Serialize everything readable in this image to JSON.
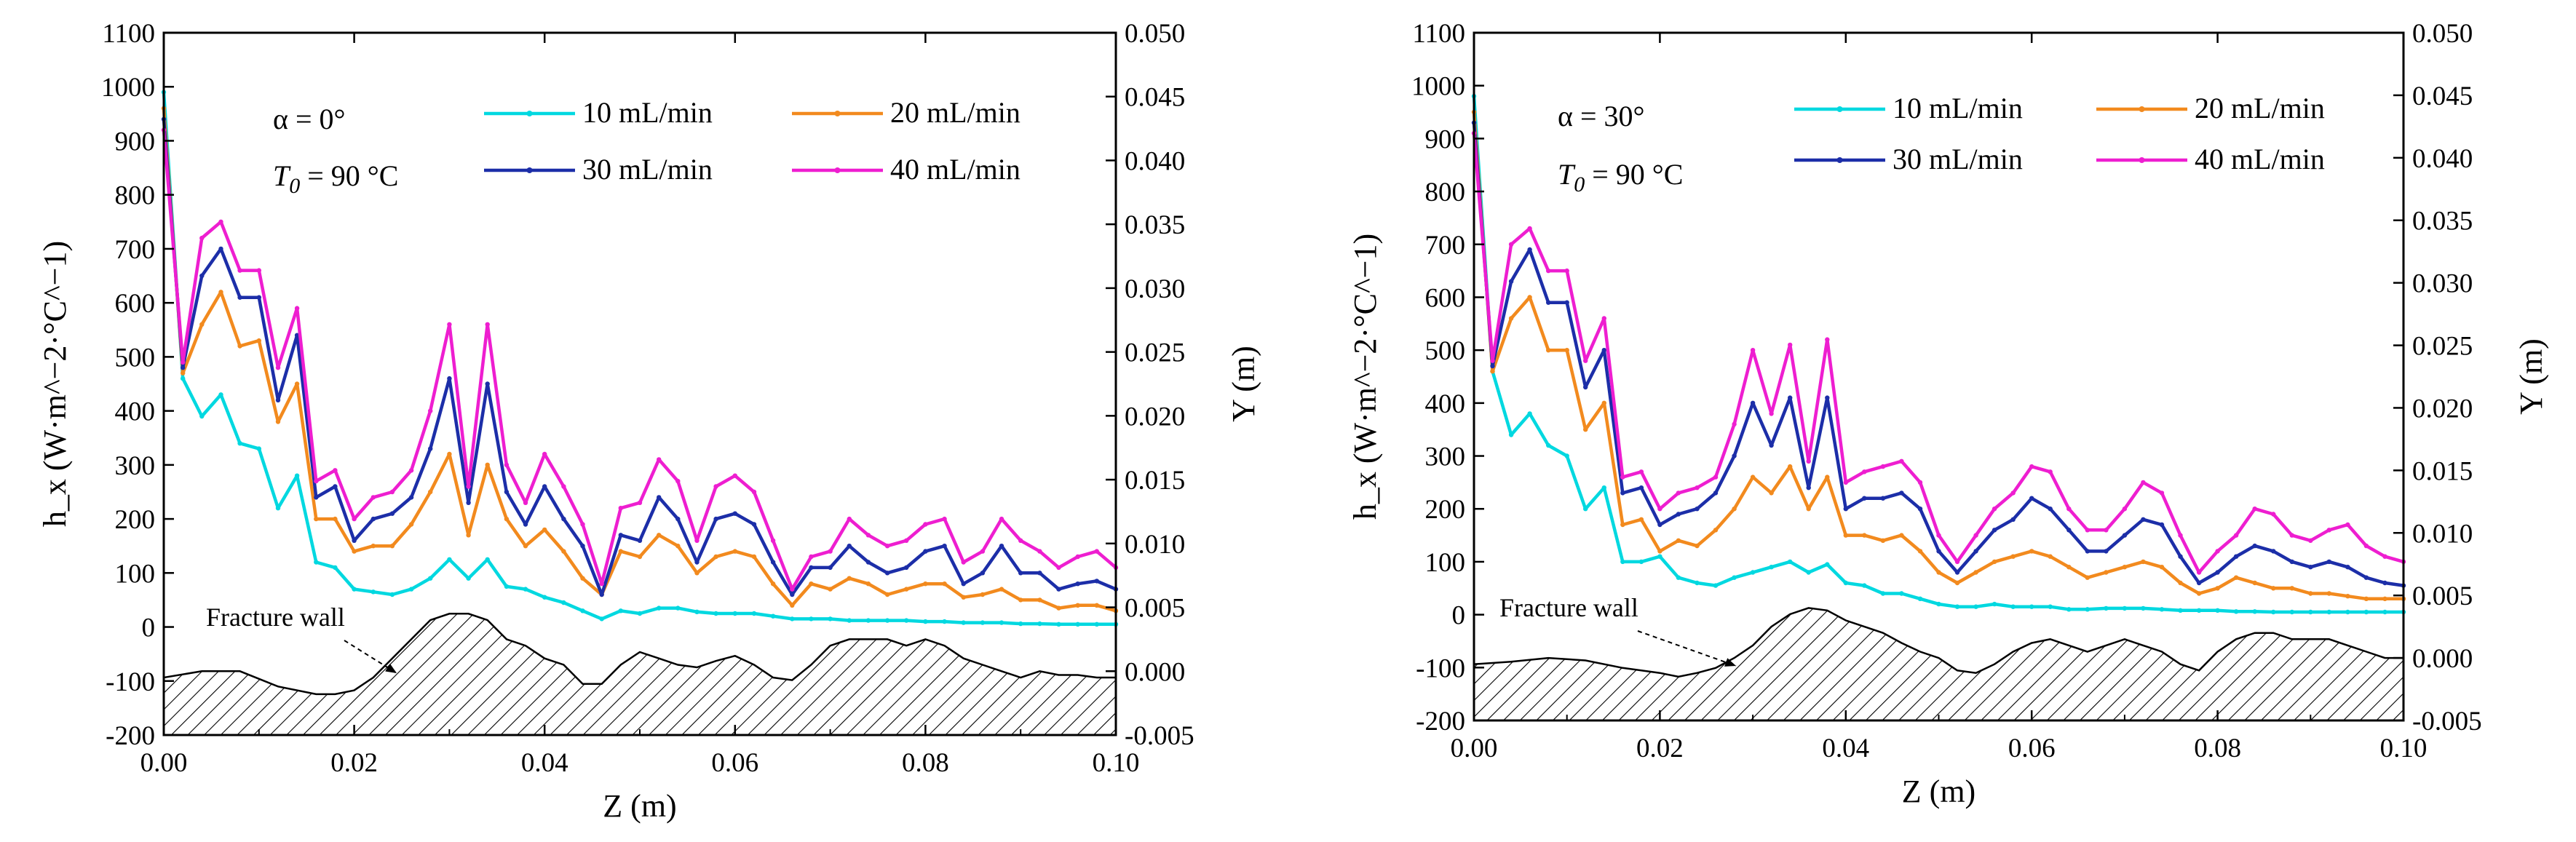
{
  "figure": {
    "panels": [
      {
        "condition": {
          "alpha": "α = 0°",
          "t0_symbol": "T",
          "t0_sub": "0",
          "t0_value": " = 90 °C"
        },
        "fracture_label": "Fracture wall"
      },
      {
        "condition": {
          "alpha": "α = 30°",
          "t0_symbol": "T",
          "t0_sub": "0",
          "t0_value": " = 90 °C"
        },
        "fracture_label": "Fracture wall"
      }
    ]
  },
  "chart_data": [
    {
      "type": "line",
      "title": "",
      "xlabel": "Z (m)",
      "ylabel": "h_x (W·m^−2·°C^−1)",
      "y2label": "Y (m)",
      "xlim": [
        0,
        0.1
      ],
      "ylim": [
        -200,
        1100
      ],
      "y2lim": [
        -0.005,
        0.05
      ],
      "x_ticks": [
        "0.00",
        "0.02",
        "0.04",
        "0.06",
        "0.08",
        "0.10"
      ],
      "y_ticks": [
        "-200",
        "-100",
        "0",
        "100",
        "200",
        "300",
        "400",
        "500",
        "600",
        "700",
        "800",
        "900",
        "1000",
        "1100"
      ],
      "y2_ticks": [
        "-0.005",
        "0.000",
        "0.005",
        "0.010",
        "0.015",
        "0.020",
        "0.025",
        "0.030",
        "0.035",
        "0.040",
        "0.045",
        "0.050"
      ],
      "legend_position": "top-right",
      "x": [
        0.0,
        0.002,
        0.004,
        0.006,
        0.008,
        0.01,
        0.012,
        0.014,
        0.016,
        0.018,
        0.02,
        0.022,
        0.024,
        0.026,
        0.028,
        0.03,
        0.032,
        0.034,
        0.036,
        0.038,
        0.04,
        0.042,
        0.044,
        0.046,
        0.048,
        0.05,
        0.052,
        0.054,
        0.056,
        0.058,
        0.06,
        0.062,
        0.064,
        0.066,
        0.068,
        0.07,
        0.072,
        0.074,
        0.076,
        0.078,
        0.08,
        0.082,
        0.084,
        0.086,
        0.088,
        0.09,
        0.092,
        0.094,
        0.096,
        0.098,
        0.1
      ],
      "series": [
        {
          "name": "10 mL/min",
          "color": "#00d8e0",
          "values": [
            990,
            460,
            390,
            430,
            340,
            330,
            220,
            280,
            120,
            110,
            70,
            65,
            60,
            70,
            90,
            125,
            90,
            125,
            75,
            70,
            55,
            45,
            30,
            15,
            30,
            25,
            35,
            35,
            28,
            25,
            25,
            25,
            20,
            15,
            15,
            15,
            12,
            12,
            12,
            12,
            10,
            10,
            8,
            8,
            8,
            6,
            6,
            5,
            5,
            5,
            5
          ]
        },
        {
          "name": "20 mL/min",
          "color": "#f28a1e",
          "values": [
            960,
            470,
            560,
            620,
            520,
            530,
            380,
            450,
            200,
            200,
            140,
            150,
            150,
            190,
            250,
            320,
            170,
            300,
            200,
            150,
            180,
            140,
            90,
            60,
            140,
            130,
            170,
            150,
            100,
            130,
            140,
            130,
            80,
            40,
            80,
            70,
            90,
            80,
            60,
            70,
            80,
            80,
            55,
            60,
            70,
            50,
            50,
            35,
            40,
            40,
            30
          ]
        },
        {
          "name": "30 mL/min",
          "color": "#1c2ea8",
          "values": [
            940,
            480,
            650,
            700,
            610,
            610,
            420,
            540,
            240,
            260,
            160,
            200,
            210,
            240,
            330,
            460,
            230,
            450,
            250,
            190,
            260,
            200,
            150,
            60,
            170,
            160,
            240,
            200,
            120,
            200,
            210,
            190,
            120,
            60,
            110,
            110,
            150,
            120,
            100,
            110,
            140,
            150,
            80,
            100,
            150,
            100,
            100,
            70,
            80,
            85,
            70
          ]
        },
        {
          "name": "40 mL/min",
          "color": "#ee1ed0",
          "values": [
            920,
            490,
            720,
            750,
            660,
            660,
            480,
            590,
            270,
            290,
            200,
            240,
            250,
            290,
            400,
            560,
            260,
            560,
            300,
            230,
            320,
            260,
            190,
            80,
            220,
            230,
            310,
            270,
            160,
            260,
            280,
            250,
            160,
            70,
            130,
            140,
            200,
            170,
            150,
            160,
            190,
            200,
            120,
            140,
            200,
            160,
            140,
            110,
            130,
            140,
            110
          ]
        }
      ],
      "fracture_wall": {
        "z": [
          0.0,
          0.004,
          0.008,
          0.012,
          0.016,
          0.018,
          0.02,
          0.022,
          0.024,
          0.026,
          0.028,
          0.03,
          0.032,
          0.034,
          0.036,
          0.038,
          0.04,
          0.042,
          0.044,
          0.046,
          0.048,
          0.05,
          0.052,
          0.054,
          0.056,
          0.058,
          0.06,
          0.062,
          0.064,
          0.066,
          0.068,
          0.07,
          0.072,
          0.074,
          0.076,
          0.078,
          0.08,
          0.082,
          0.084,
          0.086,
          0.088,
          0.09,
          0.092,
          0.094,
          0.096,
          0.098,
          0.1
        ],
        "y": [
          -0.0005,
          0.0,
          0.0,
          -0.0012,
          -0.0018,
          -0.0018,
          -0.0015,
          -0.0005,
          0.001,
          0.0025,
          0.004,
          0.0045,
          0.0045,
          0.004,
          0.0025,
          0.002,
          0.001,
          0.0005,
          -0.001,
          -0.001,
          0.0005,
          0.0015,
          0.001,
          0.0005,
          0.0003,
          0.0008,
          0.0012,
          0.0005,
          -0.0005,
          -0.0007,
          0.0005,
          0.002,
          0.0025,
          0.0025,
          0.0025,
          0.002,
          0.0025,
          0.002,
          0.001,
          0.0005,
          0.0,
          -0.0005,
          0.0,
          -0.0003,
          -0.0003,
          -0.0005,
          -0.0005
        ]
      }
    },
    {
      "type": "line",
      "title": "",
      "xlabel": "Z (m)",
      "ylabel": "h_x (W·m^−2·°C^−1)",
      "y2label": "Y (m)",
      "xlim": [
        0,
        0.1
      ],
      "ylim": [
        -200,
        1100
      ],
      "y2lim": [
        -0.005,
        0.05
      ],
      "x_ticks": [
        "0.00",
        "0.02",
        "0.04",
        "0.06",
        "0.08",
        "0.10"
      ],
      "y_ticks": [
        "-200",
        "-100",
        "0",
        "100",
        "200",
        "300",
        "400",
        "500",
        "600",
        "700",
        "800",
        "900",
        "1000",
        "1100"
      ],
      "y2_ticks": [
        "-0.005",
        "0.000",
        "0.005",
        "0.010",
        "0.015",
        "0.020",
        "0.025",
        "0.030",
        "0.035",
        "0.040",
        "0.045",
        "0.050"
      ],
      "legend_position": "top-right",
      "x": [
        0.0,
        0.002,
        0.004,
        0.006,
        0.008,
        0.01,
        0.012,
        0.014,
        0.016,
        0.018,
        0.02,
        0.022,
        0.024,
        0.026,
        0.028,
        0.03,
        0.032,
        0.034,
        0.036,
        0.038,
        0.04,
        0.042,
        0.044,
        0.046,
        0.048,
        0.05,
        0.052,
        0.054,
        0.056,
        0.058,
        0.06,
        0.062,
        0.064,
        0.066,
        0.068,
        0.07,
        0.072,
        0.074,
        0.076,
        0.078,
        0.08,
        0.082,
        0.084,
        0.086,
        0.088,
        0.09,
        0.092,
        0.094,
        0.096,
        0.098,
        0.1
      ],
      "series": [
        {
          "name": "10 mL/min",
          "color": "#00d8e0",
          "values": [
            980,
            460,
            340,
            380,
            320,
            300,
            200,
            240,
            100,
            100,
            110,
            70,
            60,
            55,
            70,
            80,
            90,
            100,
            80,
            95,
            60,
            55,
            40,
            40,
            30,
            20,
            15,
            15,
            20,
            15,
            15,
            15,
            10,
            10,
            12,
            12,
            12,
            10,
            8,
            8,
            8,
            6,
            6,
            5,
            5,
            5,
            5,
            5,
            5,
            5,
            5
          ]
        },
        {
          "name": "20 mL/min",
          "color": "#f28a1e",
          "values": [
            950,
            460,
            560,
            600,
            500,
            500,
            350,
            400,
            170,
            180,
            120,
            140,
            130,
            160,
            200,
            260,
            230,
            280,
            200,
            260,
            150,
            150,
            140,
            150,
            120,
            80,
            60,
            80,
            100,
            110,
            120,
            110,
            90,
            70,
            80,
            90,
            100,
            90,
            60,
            40,
            50,
            70,
            60,
            50,
            50,
            40,
            40,
            35,
            30,
            30,
            30
          ]
        },
        {
          "name": "30 mL/min",
          "color": "#1c2ea8",
          "values": [
            930,
            470,
            630,
            690,
            590,
            590,
            430,
            500,
            230,
            240,
            170,
            190,
            200,
            230,
            300,
            400,
            320,
            410,
            240,
            410,
            200,
            220,
            220,
            230,
            200,
            120,
            80,
            120,
            160,
            180,
            220,
            200,
            160,
            120,
            120,
            150,
            180,
            170,
            110,
            60,
            80,
            110,
            130,
            120,
            100,
            90,
            100,
            90,
            70,
            60,
            55
          ]
        },
        {
          "name": "40 mL/min",
          "color": "#ee1ed0",
          "values": [
            910,
            480,
            700,
            730,
            650,
            650,
            480,
            560,
            260,
            270,
            200,
            230,
            240,
            260,
            360,
            500,
            380,
            510,
            290,
            520,
            250,
            270,
            280,
            290,
            250,
            150,
            100,
            150,
            200,
            230,
            280,
            270,
            200,
            160,
            160,
            200,
            250,
            230,
            150,
            80,
            120,
            150,
            200,
            190,
            150,
            140,
            160,
            170,
            130,
            110,
            100
          ]
        }
      ],
      "fracture_wall": {
        "z": [
          0.0,
          0.004,
          0.008,
          0.012,
          0.016,
          0.018,
          0.02,
          0.022,
          0.024,
          0.026,
          0.028,
          0.03,
          0.032,
          0.034,
          0.036,
          0.038,
          0.04,
          0.042,
          0.044,
          0.046,
          0.048,
          0.05,
          0.052,
          0.054,
          0.056,
          0.058,
          0.06,
          0.062,
          0.064,
          0.066,
          0.068,
          0.07,
          0.072,
          0.074,
          0.076,
          0.078,
          0.08,
          0.082,
          0.084,
          0.086,
          0.088,
          0.09,
          0.092,
          0.094,
          0.096,
          0.098,
          0.1
        ],
        "y": [
          -0.0005,
          -0.0003,
          0.0,
          -0.0002,
          -0.0008,
          -0.001,
          -0.0012,
          -0.0015,
          -0.0012,
          -0.0008,
          0.0,
          0.001,
          0.0025,
          0.0035,
          0.004,
          0.0038,
          0.003,
          0.0025,
          0.002,
          0.0012,
          0.0005,
          0.0,
          -0.001,
          -0.0012,
          -0.0005,
          0.0005,
          0.0012,
          0.0015,
          0.001,
          0.0005,
          0.001,
          0.0015,
          0.001,
          0.0005,
          -0.0005,
          -0.001,
          0.0005,
          0.0015,
          0.002,
          0.002,
          0.0015,
          0.0015,
          0.0015,
          0.001,
          0.0005,
          0.0,
          0.0
        ]
      }
    }
  ]
}
